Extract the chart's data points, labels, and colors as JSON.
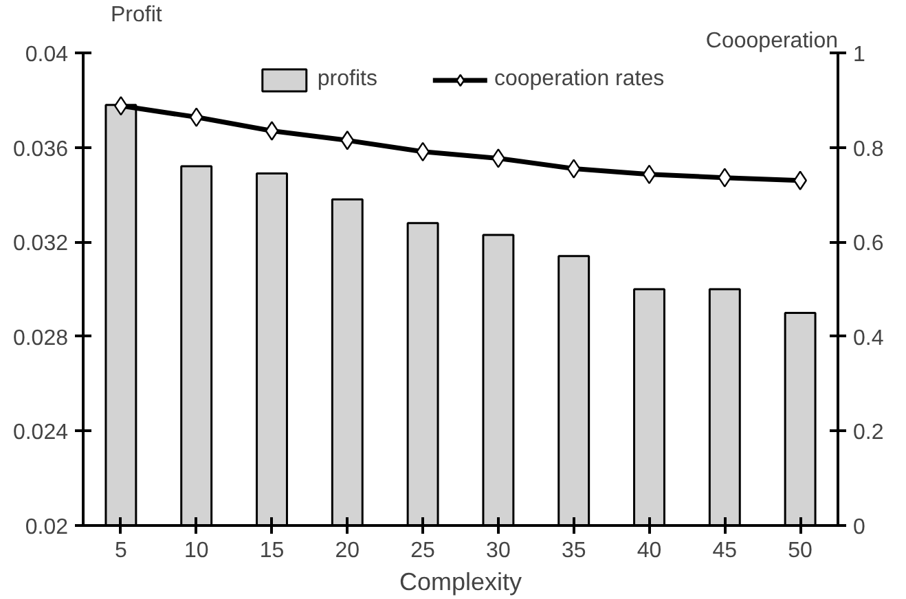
{
  "chart_data": {
    "type": "bar",
    "xlabel": "Complexity",
    "ylabel": "Profit",
    "y2label": "Coooperation",
    "categories": [
      "5",
      "10",
      "15",
      "20",
      "25",
      "30",
      "35",
      "40",
      "45",
      "50"
    ],
    "series": [
      {
        "name": "profits",
        "color": "#d3d3d3",
        "values": [
          0.0378,
          0.0352,
          0.0349,
          0.0338,
          0.0328,
          0.0323,
          0.0314,
          0.03,
          0.03,
          0.029
        ]
      },
      {
        "name": "cooperation rates",
        "type": "line",
        "axis": "y2",
        "color": "#000000",
        "marker": "diamond",
        "values": [
          0.888,
          0.864,
          0.835,
          0.815,
          0.791,
          0.777,
          0.755,
          0.743,
          0.736,
          0.73
        ]
      }
    ],
    "ylim": [
      0.02,
      0.04
    ],
    "yticks": [
      0.02,
      0.024,
      0.028,
      0.032,
      0.036,
      0.04
    ],
    "y2lim": [
      0,
      1
    ],
    "y2ticks": [
      0,
      0.2,
      0.4,
      0.6,
      0.8,
      1
    ],
    "legend": "top",
    "grid": false
  }
}
